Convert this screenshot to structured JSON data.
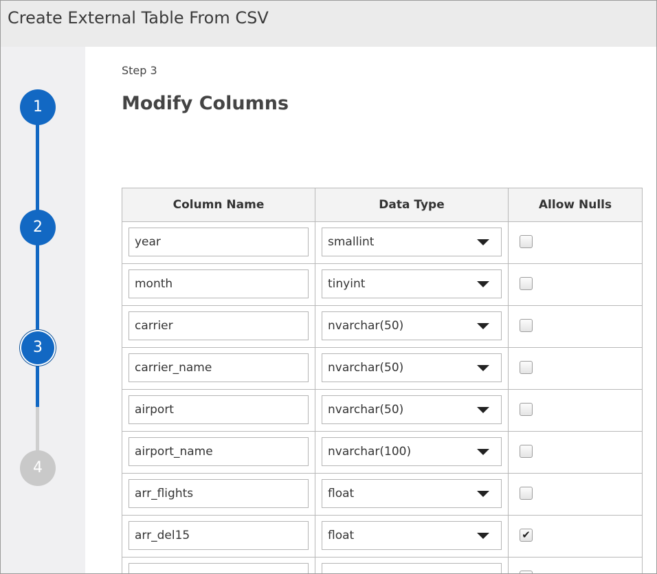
{
  "header": {
    "title": "Create External Table From CSV"
  },
  "steps": [
    {
      "label": "1",
      "state": "complete"
    },
    {
      "label": "2",
      "state": "complete"
    },
    {
      "label": "3",
      "state": "current"
    },
    {
      "label": "4",
      "state": "pending"
    }
  ],
  "step_caption": "Step 3",
  "page_title": "Modify Columns",
  "table": {
    "headers": [
      "Column Name",
      "Data Type",
      "Allow Nulls"
    ],
    "rows": [
      {
        "column_name": "year",
        "data_type": "smallint",
        "allow_nulls": false
      },
      {
        "column_name": "month",
        "data_type": "tinyint",
        "allow_nulls": false
      },
      {
        "column_name": "carrier",
        "data_type": "nvarchar(50)",
        "allow_nulls": false
      },
      {
        "column_name": "carrier_name",
        "data_type": "nvarchar(50)",
        "allow_nulls": false
      },
      {
        "column_name": "airport",
        "data_type": "nvarchar(50)",
        "allow_nulls": false
      },
      {
        "column_name": "airport_name",
        "data_type": "nvarchar(100)",
        "allow_nulls": false
      },
      {
        "column_name": "arr_flights",
        "data_type": "float",
        "allow_nulls": false
      },
      {
        "column_name": "arr_del15",
        "data_type": "float",
        "allow_nulls": true
      }
    ]
  }
}
